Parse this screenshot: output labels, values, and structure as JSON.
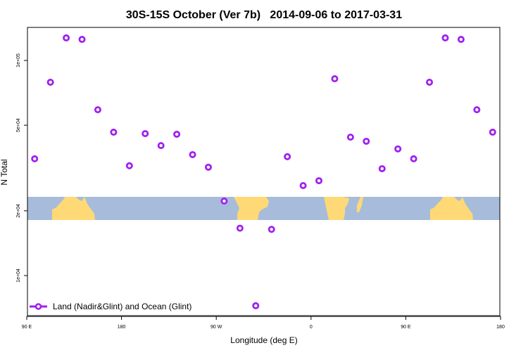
{
  "chart_data": {
    "type": "scatter",
    "title": "30S-15S October (Ver 7b)   2014-09-06 to 2017-03-31",
    "xlabel": "Longitude (deg E)",
    "ylabel": "N Total",
    "xlim": [
      90,
      540
    ],
    "ylim": [
      6500,
      160000
    ],
    "y_scale": "log",
    "grid": false,
    "x_ticks": [
      {
        "value": 90,
        "label": "90 E"
      },
      {
        "value": 180,
        "label": "180"
      },
      {
        "value": 270,
        "label": "90 W"
      },
      {
        "value": 360,
        "label": "0"
      },
      {
        "value": 450,
        "label": "90 E"
      },
      {
        "value": 540,
        "label": "180"
      }
    ],
    "y_ticks": [
      {
        "value": 10000,
        "label": "1e+04"
      },
      {
        "value": 20000,
        "label": "2e+04"
      },
      {
        "value": 50000,
        "label": "5e+04"
      },
      {
        "value": 100000,
        "label": "1e+05"
      }
    ],
    "legend": {
      "position": "bottom-left",
      "label": "Land (Nadir&Glint) and Ocean (Glint)"
    },
    "series_color": "#A020F0",
    "map_strip": {
      "latitudes": "30S-15S",
      "land_color": "#FFD976",
      "ocean_color": "#A7BCDA",
      "y_range": [
        18000,
        24500
      ]
    },
    "series": [
      {
        "name": "Land (Nadir&Glint) and Ocean (Glint)",
        "x": [
          97.5,
          112.5,
          127.5,
          142.5,
          157.5,
          172.5,
          187.5,
          202.5,
          217.5,
          232.5,
          247.5,
          262.5,
          277.5,
          292.5,
          307.5,
          322.5,
          337.5,
          352.5,
          367.5,
          382.5,
          397.5,
          412.5,
          427.5,
          442.5,
          457.5,
          472.5,
          487.5,
          502.5,
          517.5,
          532.5
        ],
        "y": [
          34900,
          79200,
          127300,
          125300,
          59000,
          46400,
          32400,
          45700,
          40200,
          45400,
          36500,
          31900,
          22200,
          16600,
          7240,
          16400,
          35700,
          26200,
          27600,
          82200,
          44000,
          42100,
          31400,
          38800,
          34900,
          79200,
          127300,
          125300,
          59000,
          46400
        ]
      }
    ]
  }
}
